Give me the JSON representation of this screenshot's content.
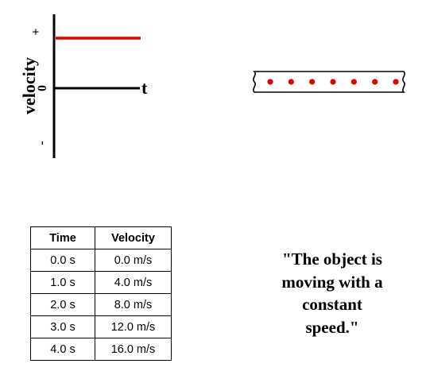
{
  "graph": {
    "y_axis_label": "velocity",
    "x_axis_label": "t",
    "plus_label": "+",
    "zero_label": "0",
    "minus_label": "-",
    "line_color": "#e00000",
    "line_level": "positive"
  },
  "ticker_tape": {
    "dot_count": 7,
    "dot_spacing": "equal",
    "dot_color": "#e00000"
  },
  "table": {
    "headers": [
      "Time",
      "Velocity"
    ],
    "rows": [
      [
        "0.0 s",
        "0.0 m/s"
      ],
      [
        "1.0 s",
        "4.0 m/s"
      ],
      [
        "2.0 s",
        "8.0 m/s"
      ],
      [
        "3.0 s",
        "12.0 m/s"
      ],
      [
        "4.0 s",
        "16.0 m/s"
      ]
    ]
  },
  "statement": {
    "line1": "\"The object is",
    "line2": "moving with a",
    "line3": "constant",
    "line4": "speed.\""
  }
}
